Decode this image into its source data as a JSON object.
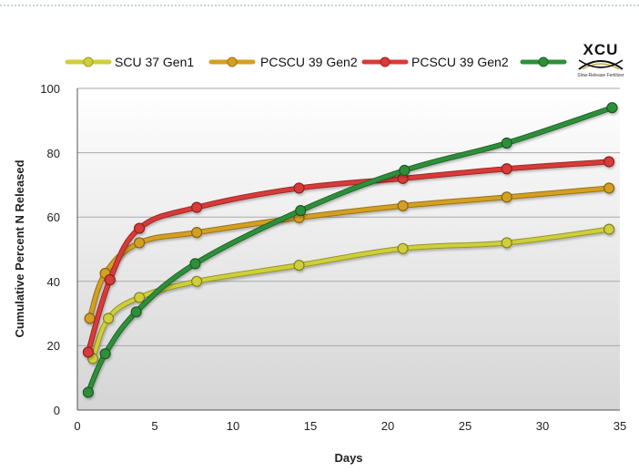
{
  "chart_data": {
    "type": "line",
    "xlabel": "Days",
    "ylabel": "Cumulative Percent N Released",
    "xlim": [
      0,
      35
    ],
    "ylim": [
      0,
      100
    ],
    "xticks": [
      "0",
      "5",
      "10",
      "15",
      "20",
      "25",
      "30",
      "35"
    ],
    "yticks": [
      "0",
      "20",
      "40",
      "60",
      "80",
      "100"
    ],
    "grid": "horizontal",
    "legend_position": "top",
    "series": [
      {
        "name": "SCU 37 Gen1",
        "color": "#cfcf3a",
        "x": [
          1,
          2,
          4,
          7.7,
          14.3,
          21,
          27.7,
          34.3
        ],
        "y": [
          16,
          28.5,
          35,
          40,
          45,
          50.2,
          52,
          56.2
        ]
      },
      {
        "name": "PCSCU 39 Gen2",
        "color": "#d4a020",
        "x": [
          0.8,
          1.8,
          4,
          7.7,
          14.3,
          21,
          27.7,
          34.3
        ],
        "y": [
          28.5,
          42.5,
          52,
          55.2,
          59.8,
          63.5,
          66.2,
          69
        ]
      },
      {
        "name": "PCSCU 39 Gen2",
        "color": "#d83a38",
        "x": [
          0.7,
          2.1,
          4,
          7.7,
          14.3,
          21,
          27.7,
          34.3
        ],
        "y": [
          18,
          40.5,
          56.5,
          63,
          69,
          72,
          75,
          77.2
        ]
      },
      {
        "name": "",
        "color": "#2f8f3a",
        "x": [
          0.7,
          1.8,
          3.8,
          7.6,
          14.4,
          21.1,
          27.7,
          34.5
        ],
        "y": [
          5.5,
          17.5,
          30.5,
          45.5,
          62,
          74.5,
          83,
          94
        ]
      }
    ]
  },
  "logo": {
    "name": "XCU",
    "tagline": "Slow-Release Fertilizer"
  }
}
